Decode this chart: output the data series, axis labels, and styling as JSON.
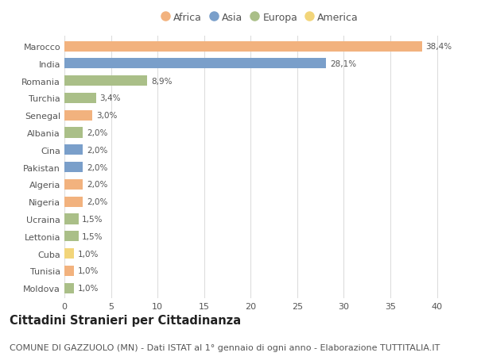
{
  "countries": [
    "Marocco",
    "India",
    "Romania",
    "Turchia",
    "Senegal",
    "Albania",
    "Cina",
    "Pakistan",
    "Algeria",
    "Nigeria",
    "Ucraina",
    "Lettonia",
    "Cuba",
    "Tunisia",
    "Moldova"
  ],
  "values": [
    38.4,
    28.1,
    8.9,
    3.4,
    3.0,
    2.0,
    2.0,
    2.0,
    2.0,
    2.0,
    1.5,
    1.5,
    1.0,
    1.0,
    1.0
  ],
  "labels": [
    "38,4%",
    "28,1%",
    "8,9%",
    "3,4%",
    "3,0%",
    "2,0%",
    "2,0%",
    "2,0%",
    "2,0%",
    "2,0%",
    "1,5%",
    "1,5%",
    "1,0%",
    "1,0%",
    "1,0%"
  ],
  "continents": [
    "Africa",
    "Asia",
    "Europa",
    "Europa",
    "Africa",
    "Europa",
    "Asia",
    "Asia",
    "Africa",
    "Africa",
    "Europa",
    "Europa",
    "America",
    "Africa",
    "Europa"
  ],
  "colors": {
    "Africa": "#F2B27E",
    "Asia": "#7A9FCA",
    "Europa": "#AABF88",
    "America": "#F2D57A"
  },
  "legend_order": [
    "Africa",
    "Asia",
    "Europa",
    "America"
  ],
  "title": "Cittadini Stranieri per Cittadinanza",
  "subtitle": "COMUNE DI GAZZUOLO (MN) - Dati ISTAT al 1° gennaio di ogni anno - Elaborazione TUTTITALIA.IT",
  "xlim": [
    0,
    42
  ],
  "xticks": [
    0,
    5,
    10,
    15,
    20,
    25,
    30,
    35,
    40
  ],
  "background_color": "#ffffff",
  "bar_height": 0.6,
  "title_fontsize": 10.5,
  "subtitle_fontsize": 8,
  "label_fontsize": 7.5,
  "tick_fontsize": 8,
  "legend_fontsize": 9
}
